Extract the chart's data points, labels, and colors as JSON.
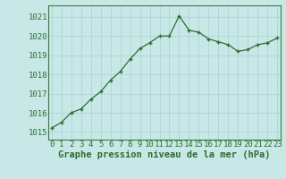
{
  "x": [
    0,
    1,
    2,
    3,
    4,
    5,
    6,
    7,
    8,
    9,
    10,
    11,
    12,
    13,
    14,
    15,
    16,
    17,
    18,
    19,
    20,
    21,
    22,
    23
  ],
  "y": [
    1015.2,
    1015.5,
    1016.0,
    1016.2,
    1016.7,
    1017.1,
    1017.7,
    1018.15,
    1018.8,
    1019.35,
    1019.65,
    1020.0,
    1020.0,
    1021.05,
    1020.3,
    1020.2,
    1019.85,
    1019.7,
    1019.55,
    1019.2,
    1019.3,
    1019.55,
    1019.65,
    1019.9
  ],
  "line_color": "#2d6e2d",
  "marker": "+",
  "marker_size": 3.5,
  "marker_linewidth": 1.0,
  "bg_color": "#c8e8e8",
  "grid_color": "#aed4d4",
  "xlabel": "Graphe pression niveau de la mer (hPa)",
  "xlabel_fontsize": 7.5,
  "yticks": [
    1015,
    1016,
    1017,
    1018,
    1019,
    1020,
    1021
  ],
  "xticks": [
    0,
    1,
    2,
    3,
    4,
    5,
    6,
    7,
    8,
    9,
    10,
    11,
    12,
    13,
    14,
    15,
    16,
    17,
    18,
    19,
    20,
    21,
    22,
    23
  ],
  "ylim": [
    1014.6,
    1021.6
  ],
  "xlim": [
    -0.3,
    23.3
  ],
  "tick_fontsize": 6.5,
  "linewidth": 0.9
}
